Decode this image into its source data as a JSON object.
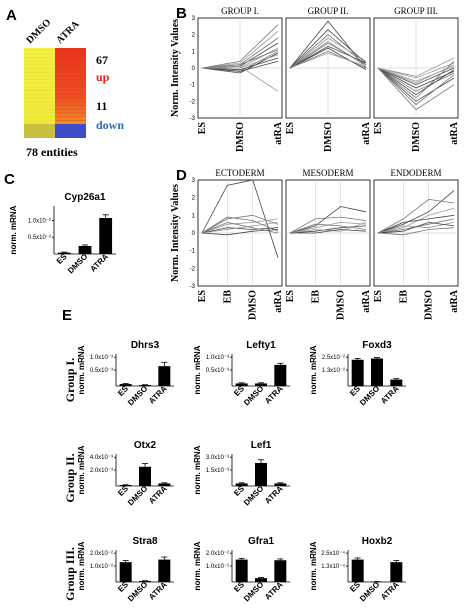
{
  "panels": [
    "A",
    "B",
    "C",
    "D",
    "E"
  ],
  "heatmap": {
    "columns": [
      "DMSO",
      "ATRA"
    ],
    "up_count": "67",
    "up_label": "up",
    "down_count": "11",
    "down_label": "down",
    "entities": "78 entities",
    "colors": {
      "yellow": "#f2ee3a",
      "red": "#e8321c",
      "orange": "#f07a26",
      "blue": "#3d4cc8",
      "up": "#e8201e",
      "down": "#2e6db8"
    }
  },
  "chart_data": [
    {
      "id": "B",
      "type": "line",
      "ylabel": "Norm. Intensity Values",
      "ylim": [
        -3,
        3
      ],
      "yticks": [
        "3",
        "2",
        "1",
        "0",
        "-1",
        "-2",
        "-3"
      ],
      "x": [
        "ES",
        "DMSO",
        "atRA"
      ],
      "groups": [
        {
          "title": "GROUP I.",
          "series": [
            [
              0,
              0.1,
              1.5
            ],
            [
              0,
              -0.2,
              1.0
            ],
            [
              0,
              0.3,
              2.2
            ],
            [
              0,
              -0.1,
              0.6
            ],
            [
              0,
              0.2,
              1.8
            ],
            [
              0,
              0.0,
              1.2
            ],
            [
              0,
              -0.3,
              0.9
            ],
            [
              0,
              0.4,
              2.6
            ],
            [
              0,
              0.1,
              -1.4
            ],
            [
              0,
              -0.2,
              0.4
            ],
            [
              0,
              0.2,
              1.1
            ],
            [
              0,
              0.0,
              0.8
            ]
          ]
        },
        {
          "title": "GROUP II.",
          "series": [
            [
              0,
              2.8,
              0
            ],
            [
              0,
              2.0,
              0.2
            ],
            [
              0,
              1.6,
              0.1
            ],
            [
              0,
              1.3,
              0.3
            ],
            [
              0,
              1.0,
              0
            ],
            [
              0,
              1.8,
              0.4
            ],
            [
              0,
              1.2,
              -0.1
            ],
            [
              0,
              1.5,
              0.2
            ],
            [
              0,
              0.9,
              0.1
            ],
            [
              0,
              2.3,
              0.3
            ]
          ]
        },
        {
          "title": "GROUP III.",
          "series": [
            [
              0,
              -1.0,
              0
            ],
            [
              0,
              -1.4,
              -0.3
            ],
            [
              0,
              -0.6,
              0.3
            ],
            [
              0,
              -2.0,
              -0.6
            ],
            [
              0,
              -1.8,
              0.4
            ],
            [
              0,
              -0.8,
              0.1
            ],
            [
              0,
              -1.2,
              -0.2
            ],
            [
              0,
              -2.5,
              -1.0
            ],
            [
              0,
              -0.5,
              0.6
            ],
            [
              0,
              -1.6,
              -0.1
            ],
            [
              0,
              -2.2,
              -0.4
            ],
            [
              0,
              -0.9,
              0.2
            ]
          ]
        }
      ]
    },
    {
      "id": "C",
      "type": "bar",
      "title": "Cyp26a1",
      "ylabel": "norm. mRNA",
      "yticks": [
        "1.0x10⁻²",
        "0.5x10⁻²"
      ],
      "categories": [
        "ES",
        "DMSO",
        "ATRA"
      ],
      "values": [
        0.05,
        0.3,
        1.35
      ],
      "errors": [
        0.02,
        0.04,
        0.12
      ],
      "ymax": 1.8
    },
    {
      "id": "D",
      "type": "line",
      "ylabel": "Norm. Intensity Values",
      "ylim": [
        -3,
        3
      ],
      "yticks": [
        "3",
        "2",
        "1",
        "0",
        "-1",
        "-2",
        "-3"
      ],
      "x": [
        "ES",
        "EB",
        "DMSO",
        "atRA"
      ],
      "groups": [
        {
          "title": "ECTODERM",
          "series": [
            [
              0,
              2.7,
              3.0,
              -1.4
            ],
            [
              0,
              0.8,
              1.0,
              0.5
            ],
            [
              0,
              0.5,
              0.6,
              0.8
            ],
            [
              0,
              0.3,
              0.2,
              0.3
            ],
            [
              0,
              0.9,
              0.7,
              0.1
            ],
            [
              0,
              0.2,
              0.4,
              0.6
            ],
            [
              0,
              -0.1,
              0.1,
              0.2
            ],
            [
              0,
              0.6,
              0.3,
              0.0
            ]
          ]
        },
        {
          "title": "MESODERM",
          "series": [
            [
              0,
              0.4,
              1.5,
              1.2
            ],
            [
              0,
              0.8,
              0.9,
              0.7
            ],
            [
              0,
              0.3,
              0.6,
              0.5
            ],
            [
              0,
              0.1,
              0.3,
              0.4
            ],
            [
              0,
              0.5,
              0.4,
              0.2
            ],
            [
              0,
              0.2,
              0.1,
              0.6
            ],
            [
              0,
              0.0,
              0.2,
              0.1
            ]
          ]
        },
        {
          "title": "ENDODERM",
          "series": [
            [
              0,
              0.5,
              1.2,
              2.4
            ],
            [
              0,
              0.8,
              1.9,
              1.7
            ],
            [
              0,
              0.3,
              1.0,
              1.4
            ],
            [
              0,
              0.6,
              0.8,
              1.0
            ],
            [
              0,
              0.2,
              0.5,
              0.8
            ],
            [
              0,
              0.4,
              0.3,
              0.6
            ],
            [
              0,
              0.1,
              0.6,
              0.4
            ],
            [
              0,
              -0.1,
              0.2,
              0.3
            ]
          ]
        }
      ]
    },
    {
      "id": "E",
      "type": "bar",
      "ylabel": "norm. mRNA",
      "categories": [
        "ES",
        "DMSO",
        "ATRA"
      ],
      "rows": [
        {
          "label": "Group I.",
          "genes": [
            {
              "name": "Dhrs3",
              "yticks": [
                "1.0x10⁻³",
                "0.5x10⁻³"
              ],
              "values": [
                0.06,
                0.03,
                0.62
              ],
              "errors": [
                0.02,
                0.01,
                0.12
              ]
            },
            {
              "name": "Lefty1",
              "yticks": [
                "1.0x10⁻³",
                "0.5x10⁻³"
              ],
              "values": [
                0.08,
                0.08,
                0.66
              ],
              "errors": [
                0.02,
                0.02,
                0.05
              ]
            },
            {
              "name": "Foxd3",
              "yticks": [
                "2.5x10⁻²",
                "1.3x10⁻²"
              ],
              "values": [
                0.82,
                0.86,
                0.2
              ],
              "errors": [
                0.04,
                0.03,
                0.03
              ]
            }
          ]
        },
        {
          "label": "Group II.",
          "genes": [
            {
              "name": "Otx2",
              "yticks": [
                "4.0x10⁻³",
                "2.0x10⁻³"
              ],
              "values": [
                0.03,
                0.6,
                0.08
              ],
              "errors": [
                0.01,
                0.1,
                0.02
              ]
            },
            {
              "name": "Lef1",
              "yticks": [
                "3.0x10⁻³",
                "1.5x10⁻³"
              ],
              "values": [
                0.08,
                0.72,
                0.08
              ],
              "errors": [
                0.02,
                0.1,
                0.02
              ]
            }
          ]
        },
        {
          "label": "Group III.",
          "genes": [
            {
              "name": "Stra8",
              "yticks": [
                "2.0x10⁻²",
                "1.0x10⁻²"
              ],
              "values": [
                0.62,
                0.03,
                0.7
              ],
              "errors": [
                0.05,
                0.01,
                0.08
              ]
            },
            {
              "name": "Gfra1",
              "yticks": [
                "2.0x10⁻²",
                "1.0x10⁻²"
              ],
              "values": [
                0.7,
                0.12,
                0.68
              ],
              "errors": [
                0.04,
                0.02,
                0.04
              ]
            },
            {
              "name": "Hoxb2",
              "yticks": [
                "2.5x10⁻⁴",
                "1.3x10⁻⁴"
              ],
              "values": [
                0.7,
                0.01,
                0.62
              ],
              "errors": [
                0.05,
                0.005,
                0.05
              ]
            }
          ]
        }
      ]
    }
  ]
}
